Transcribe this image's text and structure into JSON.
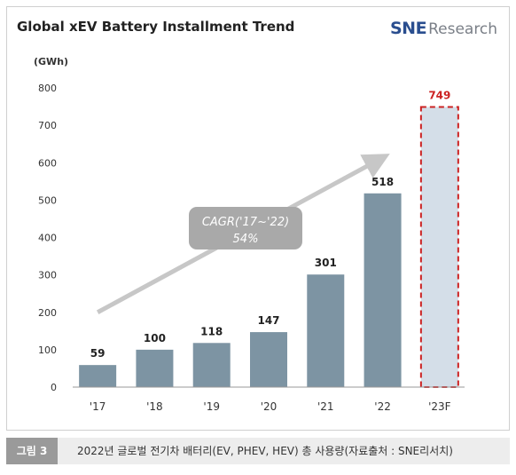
{
  "header": {
    "title": "Global xEV Battery Installment Trend",
    "logo_primary": "SNE",
    "logo_secondary": "Research"
  },
  "chart_data": {
    "type": "bar",
    "title": "Global xEV Battery Installment Trend",
    "ylabel": "(GWh)",
    "xlabel": "",
    "ylim": [
      0,
      800
    ],
    "yticks": [
      0,
      100,
      200,
      300,
      400,
      500,
      600,
      700,
      800
    ],
    "categories": [
      "'17",
      "'18",
      "'19",
      "'20",
      "'21",
      "'22",
      "'23F"
    ],
    "values": [
      59,
      100,
      118,
      147,
      301,
      518,
      749
    ],
    "forecast_index": 6,
    "annotation": {
      "line1": "CAGR('17~'22)",
      "line2": "54%"
    },
    "grid": false,
    "colors": {
      "bar": "#7d94a3",
      "forecast_fill": "#d4dee8",
      "forecast_border": "#cc2222",
      "forecast_label": "#cc2222",
      "arrow": "#c7c7c7",
      "annotation_box": "#a9a9a9"
    }
  },
  "caption": {
    "tag": "그림 3",
    "text": "2022년 글로벌 전기차 배터리(EV, PHEV, HEV) 총 사용량(자료출처 : SNE리서치)"
  }
}
